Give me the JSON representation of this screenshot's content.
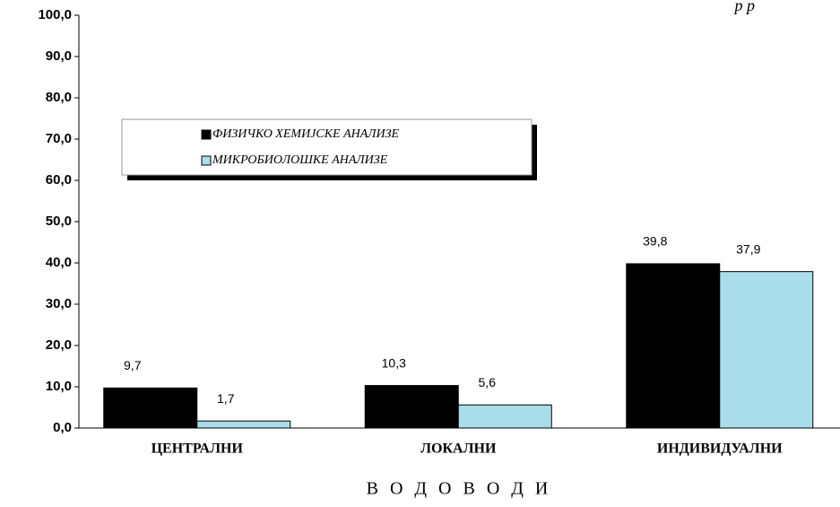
{
  "chart_data": {
    "type": "bar",
    "title": "р р",
    "x_label": "В О Д О В О Д И",
    "categories": [
      "ЦЕНТРАЛНИ",
      "ЛОКАЛНИ",
      "ИНДИВИДУАЛНИ"
    ],
    "series": [
      {
        "name": "ФИЗИЧКО ХЕМИЈСКЕ АНАЛИЗЕ",
        "color": "#000000",
        "values": [
          9.7,
          10.3,
          39.8
        ],
        "value_labels": [
          "9,7",
          "10,3",
          "39,8"
        ]
      },
      {
        "name": "МИКРОБИОЛОШКЕ АНАЛИЗЕ",
        "color": "#a9dde9",
        "values": [
          1.7,
          5.6,
          37.9
        ],
        "value_labels": [
          "1,7",
          "5,6",
          "37,9"
        ]
      }
    ],
    "ylim": [
      0,
      100
    ],
    "yticks": [
      {
        "value": 0,
        "label": "0,0"
      },
      {
        "value": 10,
        "label": "10,0"
      },
      {
        "value": 20,
        "label": "20,0"
      },
      {
        "value": 30,
        "label": "30,0"
      },
      {
        "value": 40,
        "label": "40,0"
      },
      {
        "value": 50,
        "label": "50,0"
      },
      {
        "value": 60,
        "label": "60,0"
      },
      {
        "value": 70,
        "label": "70,0"
      },
      {
        "value": 80,
        "label": "80,0"
      },
      {
        "value": 90,
        "label": "90,0"
      },
      {
        "value": 100,
        "label": "100,0"
      }
    ],
    "grid": false
  }
}
